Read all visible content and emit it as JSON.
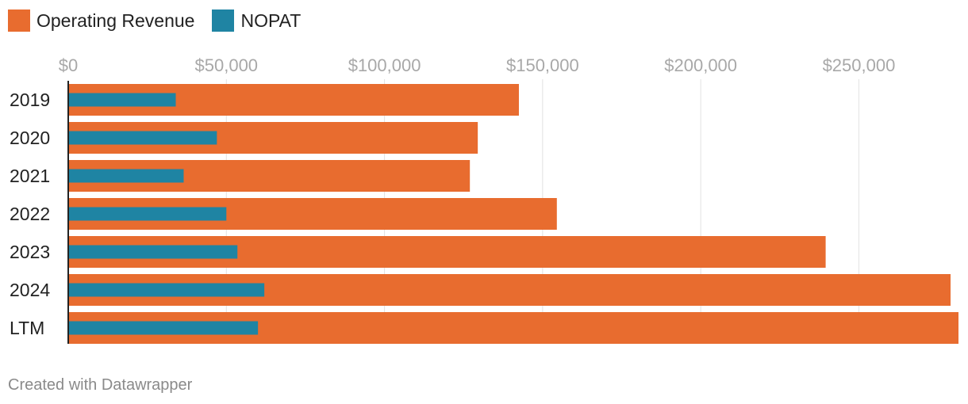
{
  "legend": {
    "items": [
      {
        "label": "Operating Revenue",
        "color": "#e86c2f"
      },
      {
        "label": "NOPAT",
        "color": "#1f84a3"
      }
    ]
  },
  "footer": {
    "text": "Created with Datawrapper"
  },
  "chart_data": {
    "type": "bar",
    "orientation": "horizontal",
    "categories": [
      "2019",
      "2020",
      "2021",
      "2022",
      "2023",
      "2024",
      "LTM"
    ],
    "series": [
      {
        "name": "Operating Revenue",
        "color": "#e86c2f",
        "values": [
          142500,
          129500,
          127000,
          154500,
          239500,
          279000,
          281500
        ]
      },
      {
        "name": "NOPAT",
        "color": "#1f84a3",
        "values": [
          34000,
          47000,
          36500,
          50000,
          53500,
          62000,
          60000
        ]
      }
    ],
    "x_ticks": [
      0,
      50000,
      100000,
      150000,
      200000,
      250000
    ],
    "x_tick_labels": [
      "$0",
      "$50,000",
      "$100,000",
      "$150,000",
      "$200,000",
      "$250,000"
    ],
    "xlim": [
      0,
      281500
    ],
    "grid": true,
    "legend_position": "top-left"
  }
}
